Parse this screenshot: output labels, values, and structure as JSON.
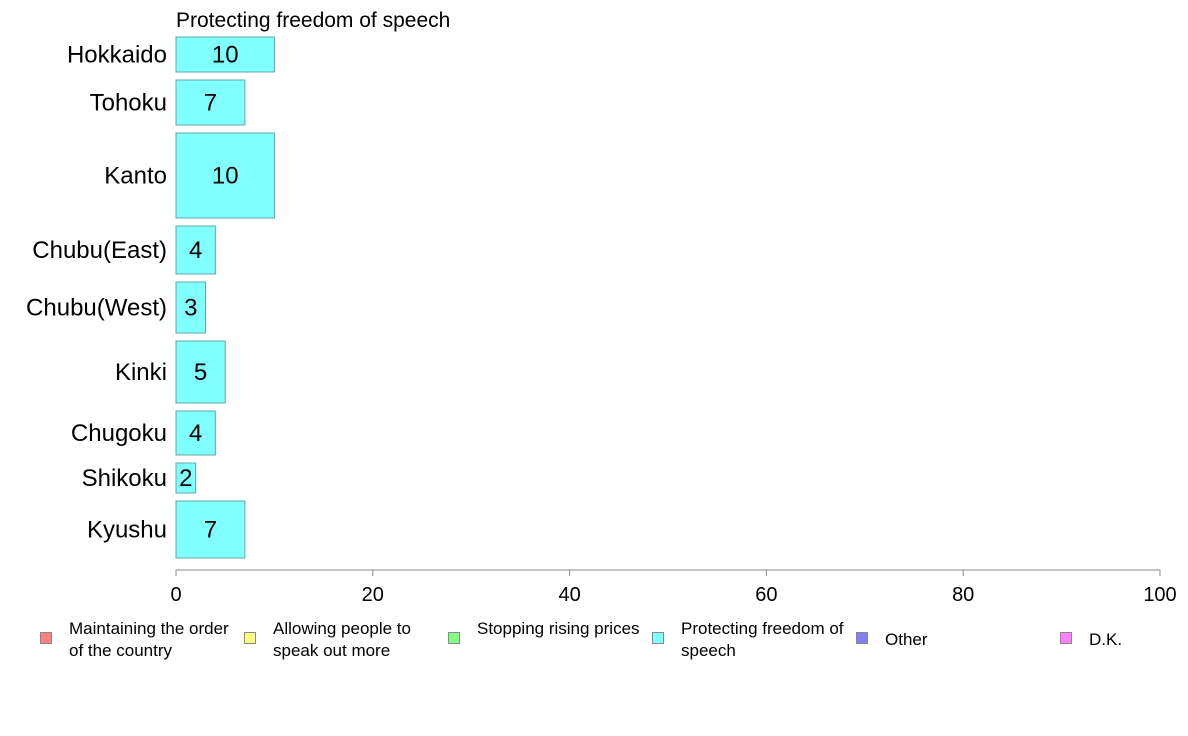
{
  "chart_data": {
    "type": "bar",
    "orientation": "horizontal",
    "title": "Protecting freedom of speech",
    "categories": [
      "Hokkaido",
      "Tohoku",
      "Kanto",
      "Chubu(East)",
      "Chubu(West)",
      "Kinki",
      "Chugoku",
      "Shikoku",
      "Kyushu"
    ],
    "values": [
      10,
      7,
      10,
      4,
      3,
      5,
      4,
      2,
      7
    ],
    "data_labels": [
      "10",
      "7",
      "10",
      "4",
      "3",
      "5",
      "4",
      "2",
      "7"
    ],
    "xlim": [
      0,
      100
    ],
    "xticks": [
      0,
      20,
      40,
      60,
      80,
      100
    ],
    "xtick_labels": [
      "0",
      "20",
      "40",
      "60",
      "80",
      "100"
    ],
    "grid": false,
    "legend_placement": "bottom",
    "bar_color": "#80ffff",
    "legend": [
      {
        "label": "Maintaining the order of the country",
        "color": "#ff8080"
      },
      {
        "label": "Allowing people to speak out more",
        "color": "#ffff80"
      },
      {
        "label": "Stopping rising prices",
        "color": "#80ff80"
      },
      {
        "label": "Protecting freedom of speech",
        "color": "#80ffff"
      },
      {
        "label": "Other",
        "color": "#8080ff"
      },
      {
        "label": "D.K.",
        "color": "#ff80ff"
      }
    ]
  }
}
